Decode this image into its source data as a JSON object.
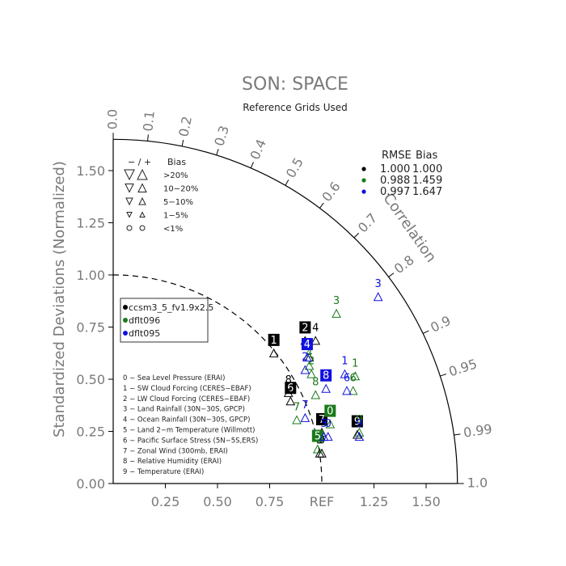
{
  "chart_data": {
    "type": "taylor",
    "title": "SON: SPACE",
    "subtitle": "Reference Grids Used",
    "ylabel": "Standardized Deviations (Normalized)",
    "arc_label": "Correlation",
    "ref_label": "REF",
    "xlim": [
      0,
      1.65
    ],
    "ylim": [
      0,
      1.65
    ],
    "x_ticks": [
      "0.25",
      "0.50",
      "0.75",
      "1.25",
      "1.50"
    ],
    "y_ticks": [
      "0.00",
      "0.25",
      "0.50",
      "0.75",
      "1.00",
      "1.25",
      "1.50"
    ],
    "correlation_ticks": [
      "0.0",
      "0.1",
      "0.2",
      "0.3",
      "0.4",
      "0.5",
      "0.6",
      "0.7",
      "0.8",
      "0.9",
      "0.95",
      "0.99",
      "1.0"
    ],
    "bias_legend": {
      "header_sign": "− / +",
      "header_bias": "Bias",
      "rows": [
        ">20%",
        "10−20%",
        "5−10%",
        "1−5%",
        "<1%"
      ]
    },
    "rmse_table": {
      "header_rmse": "RMSE",
      "header_bias": "Bias",
      "rows": [
        {
          "rmse": "1.000",
          "bias": "1.000",
          "color": "#000000"
        },
        {
          "rmse": "0.988",
          "bias": "1.459",
          "color": "#1a7a1a"
        },
        {
          "rmse": "0.997",
          "bias": "1.647",
          "color": "#1010e0"
        }
      ]
    },
    "series": [
      {
        "name": "ccsm3_5_fv1.9x2.5",
        "color": "#000000"
      },
      {
        "name": "dflt096",
        "color": "#1a7a1a"
      },
      {
        "name": "dflt095",
        "color": "#1010e0"
      }
    ],
    "variables": [
      "0 − Sea Level Pressure (ERAI)",
      "1 − SW Cloud Forcing (CERES−EBAF)",
      "2 − LW Cloud Forcing (CERES−EBAF)",
      "3 − Land Rainfall (30N−30S, GPCP)",
      "4 − Ocean Rainfall (30N−30S, GPCP)",
      "5 − Land 2−m Temperature (Willmott)",
      "6 − Pacific Surface Stress (5N−5S,ERS)",
      "7 − Zonal Wind (300mb, ERAI)",
      "8 − Relative Humidity (ERAI)",
      "9 − Temperature (ERAI)"
    ],
    "points": [
      {
        "series": 0,
        "label": "0",
        "x": 1.0,
        "y": 0.16,
        "filled": false
      },
      {
        "series": 0,
        "label": "1",
        "x": 0.77,
        "y": 0.64,
        "filled": true
      },
      {
        "series": 0,
        "label": "2",
        "x": 0.92,
        "y": 0.7,
        "filled": true
      },
      {
        "series": 0,
        "label": "3",
        "x": 0.94,
        "y": 0.62,
        "filled": false
      },
      {
        "series": 0,
        "label": "4",
        "x": 0.97,
        "y": 0.7,
        "filled": false
      },
      {
        "series": 0,
        "label": "5",
        "x": 0.99,
        "y": 0.16,
        "filled": false
      },
      {
        "series": 0,
        "label": "6",
        "x": 0.85,
        "y": 0.41,
        "filled": true
      },
      {
        "series": 0,
        "label": "7",
        "x": 1.0,
        "y": 0.26,
        "filled": true
      },
      {
        "series": 0,
        "label": "8",
        "x": 0.84,
        "y": 0.45,
        "filled": false
      },
      {
        "series": 0,
        "label": "9",
        "x": 1.17,
        "y": 0.25,
        "filled": true
      },
      {
        "series": 1,
        "label": "0",
        "x": 1.04,
        "y": 0.3,
        "filled": true
      },
      {
        "series": 1,
        "label": "1",
        "x": 1.16,
        "y": 0.53,
        "filled": false
      },
      {
        "series": 1,
        "label": "2",
        "x": 0.95,
        "y": 0.54,
        "filled": false
      },
      {
        "series": 1,
        "label": "3",
        "x": 1.07,
        "y": 0.83,
        "filled": false
      },
      {
        "series": 1,
        "label": "4",
        "x": 0.94,
        "y": 0.58,
        "filled": false
      },
      {
        "series": 1,
        "label": "5",
        "x": 0.98,
        "y": 0.18,
        "filled": true
      },
      {
        "series": 1,
        "label": "6",
        "x": 1.15,
        "y": 0.46,
        "filled": false
      },
      {
        "series": 1,
        "label": "7",
        "x": 0.88,
        "y": 0.32,
        "filled": false
      },
      {
        "series": 1,
        "label": "8",
        "x": 0.97,
        "y": 0.44,
        "filled": false
      },
      {
        "series": 1,
        "label": "9",
        "x": 1.18,
        "y": 0.26,
        "filled": false
      },
      {
        "series": 2,
        "label": "0",
        "x": 1.03,
        "y": 0.24,
        "filled": false
      },
      {
        "series": 2,
        "label": "1",
        "x": 1.11,
        "y": 0.54,
        "filled": false
      },
      {
        "series": 2,
        "label": "2",
        "x": 0.92,
        "y": 0.56,
        "filled": false
      },
      {
        "series": 2,
        "label": "3",
        "x": 1.27,
        "y": 0.91,
        "filled": false
      },
      {
        "series": 2,
        "label": "4",
        "x": 0.93,
        "y": 0.62,
        "filled": true
      },
      {
        "series": 2,
        "label": "5",
        "x": 1.01,
        "y": 0.24,
        "filled": false
      },
      {
        "series": 2,
        "label": "6",
        "x": 1.12,
        "y": 0.46,
        "filled": false
      },
      {
        "series": 2,
        "label": "7",
        "x": 0.92,
        "y": 0.33,
        "filled": false
      },
      {
        "series": 2,
        "label": "8",
        "x": 1.02,
        "y": 0.47,
        "filled": true
      },
      {
        "series": 2,
        "label": "9",
        "x": 1.18,
        "y": 0.24,
        "filled": false
      }
    ]
  }
}
